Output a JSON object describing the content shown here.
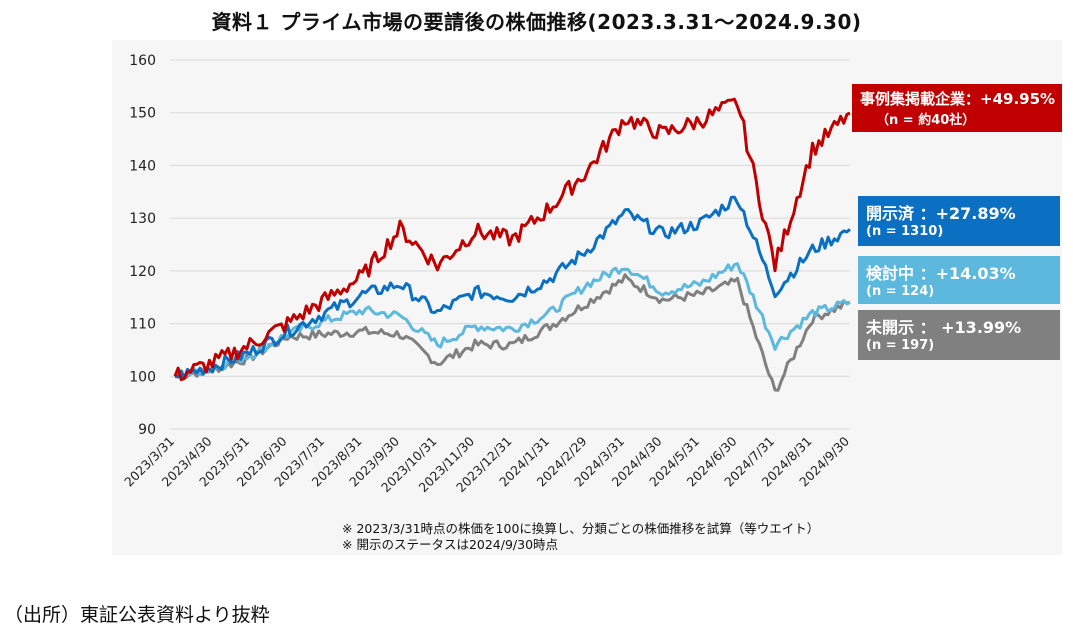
{
  "chart_data": {
    "type": "line",
    "title": "資料１ プライム市場の要請後の株価推移(2023.3.31～2024.9.30)",
    "xlabel": "",
    "ylabel": "",
    "ylim": [
      90,
      160
    ],
    "yticks": [
      90,
      100,
      110,
      120,
      130,
      140,
      150,
      160
    ],
    "grid": true,
    "x_tick_labels": [
      "2023/3/31",
      "2023/4/30",
      "2023/5/31",
      "2023/6/30",
      "2023/7/31",
      "2023/8/31",
      "2023/9/30",
      "2023/10/31",
      "2023/11/30",
      "2023/12/31",
      "2024/1/31",
      "2024/2/29",
      "2024/3/31",
      "2024/4/30",
      "2024/5/31",
      "2024/6/30",
      "2024/7/31",
      "2024/8/31",
      "2024/9/30"
    ],
    "series": [
      {
        "name": "事例集掲載企業",
        "color": "#c00000",
        "values": [
          100,
          102.5,
          106,
          110,
          114.5,
          119,
          128,
          121,
          127.5,
          126,
          132,
          139,
          149,
          146,
          148.5,
          152,
          121,
          143,
          149.95
        ]
      },
      {
        "name": "開示済",
        "color": "#0b6fc2",
        "values": [
          100,
          101.8,
          104.5,
          108.5,
          112,
          115.5,
          117.5,
          112,
          116,
          115,
          118.5,
          124,
          131,
          127,
          129,
          134,
          116,
          124,
          127.89
        ]
      },
      {
        "name": "検討中",
        "color": "#5db8de",
        "values": [
          100,
          101.5,
          104,
          108,
          110.5,
          112.5,
          111.5,
          106,
          109.5,
          109,
          112,
          117.5,
          121,
          116,
          117.5,
          121.5,
          106,
          112,
          114.03
        ]
      },
      {
        "name": "未開示",
        "color": "#808080",
        "values": [
          100,
          101.3,
          103.5,
          107.5,
          108,
          108.5,
          108,
          102.5,
          106,
          106,
          109.5,
          114,
          118.5,
          114.5,
          115.5,
          118,
          97,
          111,
          113.99
        ]
      }
    ],
    "annotations": [
      {
        "series": "事例集掲載企業",
        "line1": "事例集掲載企業：+49.95%",
        "line2": "（n = 約40社）",
        "color": "#c00000"
      },
      {
        "series": "開示済",
        "line1": "開示済 ：+27.89%",
        "line2": "(n = 1310)",
        "color": "#0b6fc2"
      },
      {
        "series": "検討中",
        "line1": "検討中 ：+14.03%",
        "line2": "(n = 124)",
        "color": "#5db8de"
      },
      {
        "series": "未開示",
        "line1": "未開示 ： +13.99%",
        "line2": "(n = 197)",
        "color": "#808080"
      }
    ]
  },
  "notes": [
    "※ 2023/3/31時点の株価を100に換算し、分類ごとの株価推移を試算（等ウエイト）",
    "※ 開示のステータスは2024/9/30時点"
  ],
  "source": "（出所）東証公表資料より抜粋"
}
